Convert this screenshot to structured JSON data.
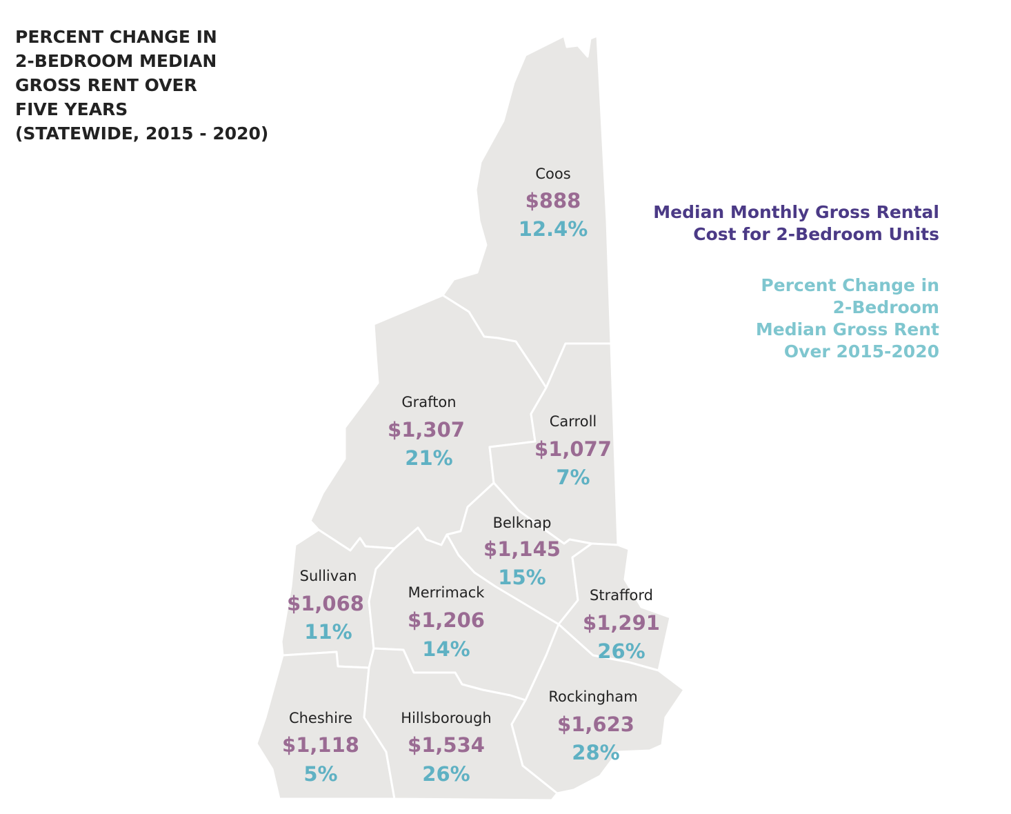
{
  "title_lines": [
    "PERCENT CHANGE IN",
    "2-BEDROOM MEDIAN",
    "GROSS RENT OVER",
    "FIVE YEARS",
    "(STATEWIDE, 2015 - 2020)"
  ],
  "legend": {
    "rent_lines": [
      "Median Monthly Gross Rental",
      "Cost for 2-Bedroom Units"
    ],
    "pct_lines": [
      "Percent Change in",
      "2-Bedroom",
      "Median Gross Rent",
      "Over 2015-2020"
    ]
  },
  "colors": {
    "land": "#e8e7e5",
    "border": "#ffffff",
    "rent": "#9a6b93",
    "pct": "#5fb1c3",
    "legend_rent": "#4b3a86",
    "legend_pct": "#7fc6cf",
    "title": "#222222"
  },
  "counties": [
    {
      "id": "coos",
      "name": "Coos",
      "rent": "$888",
      "pct": "12.4%"
    },
    {
      "id": "grafton",
      "name": "Grafton",
      "rent": "$1,307",
      "pct": "21%"
    },
    {
      "id": "carroll",
      "name": "Carroll",
      "rent": "$1,077",
      "pct": "7%"
    },
    {
      "id": "belknap",
      "name": "Belknap",
      "rent": "$1,145",
      "pct": "15%"
    },
    {
      "id": "sullivan",
      "name": "Sullivan",
      "rent": "$1,068",
      "pct": "11%"
    },
    {
      "id": "merrimack",
      "name": "Merrimack",
      "rent": "$1,206",
      "pct": "14%"
    },
    {
      "id": "strafford",
      "name": "Strafford",
      "rent": "$1,291",
      "pct": "26%"
    },
    {
      "id": "cheshire",
      "name": "Cheshire",
      "rent": "$1,118",
      "pct": "5%"
    },
    {
      "id": "hillsborough",
      "name": "Hillsborough",
      "rent": "$1,534",
      "pct": "26%"
    },
    {
      "id": "rockingham",
      "name": "Rockingham",
      "rent": "$1,623",
      "pct": "28%"
    }
  ]
}
